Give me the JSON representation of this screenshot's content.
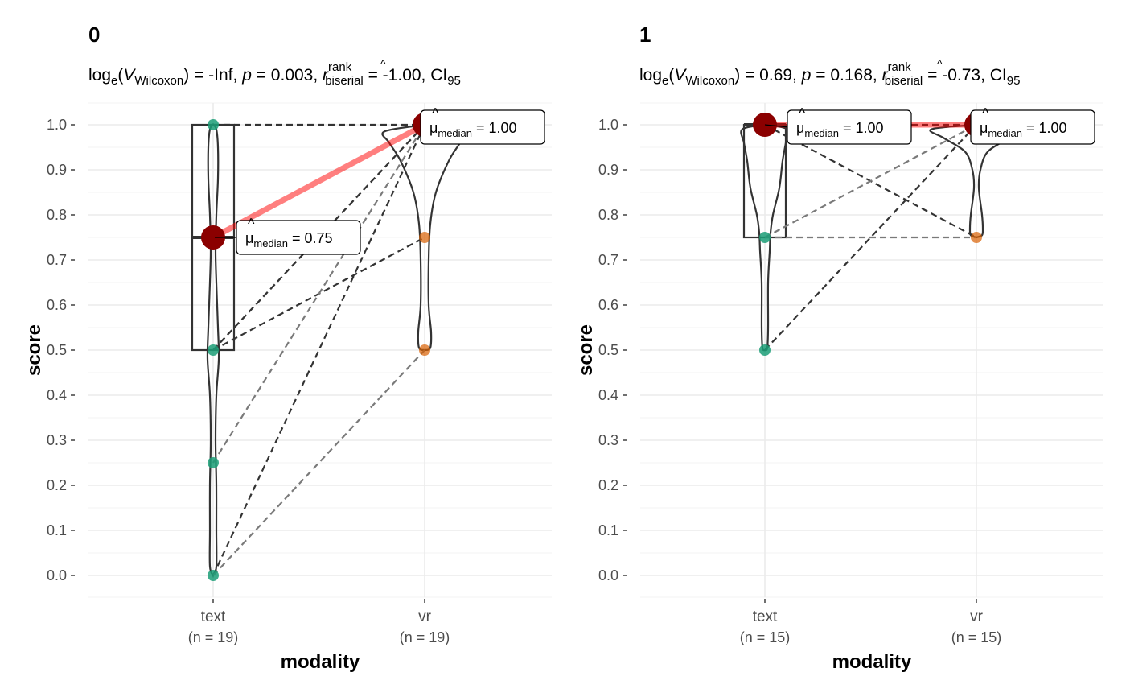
{
  "chart_data": [
    {
      "type": "paired-violin-box",
      "title": "0",
      "subtitle": {
        "stat": "V",
        "stat_sub": "Wilcoxon",
        "stat_value": "-Inf",
        "p_value": "0.003",
        "effect_sup": "rank",
        "effect_sub": "biserial",
        "effect_value": "-1.00",
        "ci_text": "CI",
        "ci_sub": "95"
      },
      "xlabel": "modality",
      "ylabel": "score",
      "ylim": [
        0,
        1
      ],
      "yticks": [
        "0.0",
        "0.1",
        "0.2",
        "0.3",
        "0.4",
        "0.5",
        "0.6",
        "0.7",
        "0.8",
        "0.9",
        "1.0"
      ],
      "categories": [
        {
          "label": "text",
          "n_label": "(n = 19)",
          "median": 0.75,
          "median_label": "= 0.75",
          "q1": 0.5,
          "q3": 1.0,
          "points": [
            0,
            0.25,
            0.5,
            1.0
          ]
        },
        {
          "label": "vr",
          "n_label": "(n = 19)",
          "median": 1.0,
          "median_label": "= 1.00",
          "points": [
            0.5,
            0.75,
            1.0
          ]
        }
      ],
      "pairs": [
        [
          1,
          1
        ],
        [
          0.5,
          1
        ],
        [
          0.5,
          0.75
        ],
        [
          0.25,
          1
        ],
        [
          0,
          1
        ],
        [
          0,
          0.5
        ],
        [
          0.5,
          1
        ]
      ]
    },
    {
      "type": "paired-violin-box",
      "title": "1",
      "subtitle": {
        "stat": "V",
        "stat_sub": "Wilcoxon",
        "stat_value": "0.69",
        "p_value": "0.168",
        "effect_sup": "rank",
        "effect_sub": "biserial",
        "effect_value": "-0.73",
        "ci_text": "CI",
        "ci_sub": "95"
      },
      "xlabel": "modality",
      "ylabel": "score",
      "ylim": [
        0,
        1
      ],
      "yticks": [
        "0.0",
        "0.1",
        "0.2",
        "0.3",
        "0.4",
        "0.5",
        "0.6",
        "0.7",
        "0.8",
        "0.9",
        "1.0"
      ],
      "categories": [
        {
          "label": "text",
          "n_label": "(n = 15)",
          "median": 1.0,
          "median_label": "= 1.00",
          "q1": 0.75,
          "q3": 1.0,
          "points": [
            0.5,
            0.75,
            1.0
          ]
        },
        {
          "label": "vr",
          "n_label": "(n = 15)",
          "median": 1.0,
          "median_label": "= 1.00",
          "points": [
            0.75,
            1.0
          ]
        }
      ],
      "pairs": [
        [
          1,
          0.75
        ],
        [
          0.75,
          1
        ],
        [
          0.5,
          1
        ],
        [
          0.75,
          0.75
        ],
        [
          1,
          1
        ]
      ]
    }
  ],
  "mu_symbol": "μ",
  "mu_sub": "median",
  "colors": {
    "text_points": "#1b9e77",
    "vr_points": "#d95f02",
    "median_point": "#8b0000",
    "median_line": "#ff0000"
  }
}
